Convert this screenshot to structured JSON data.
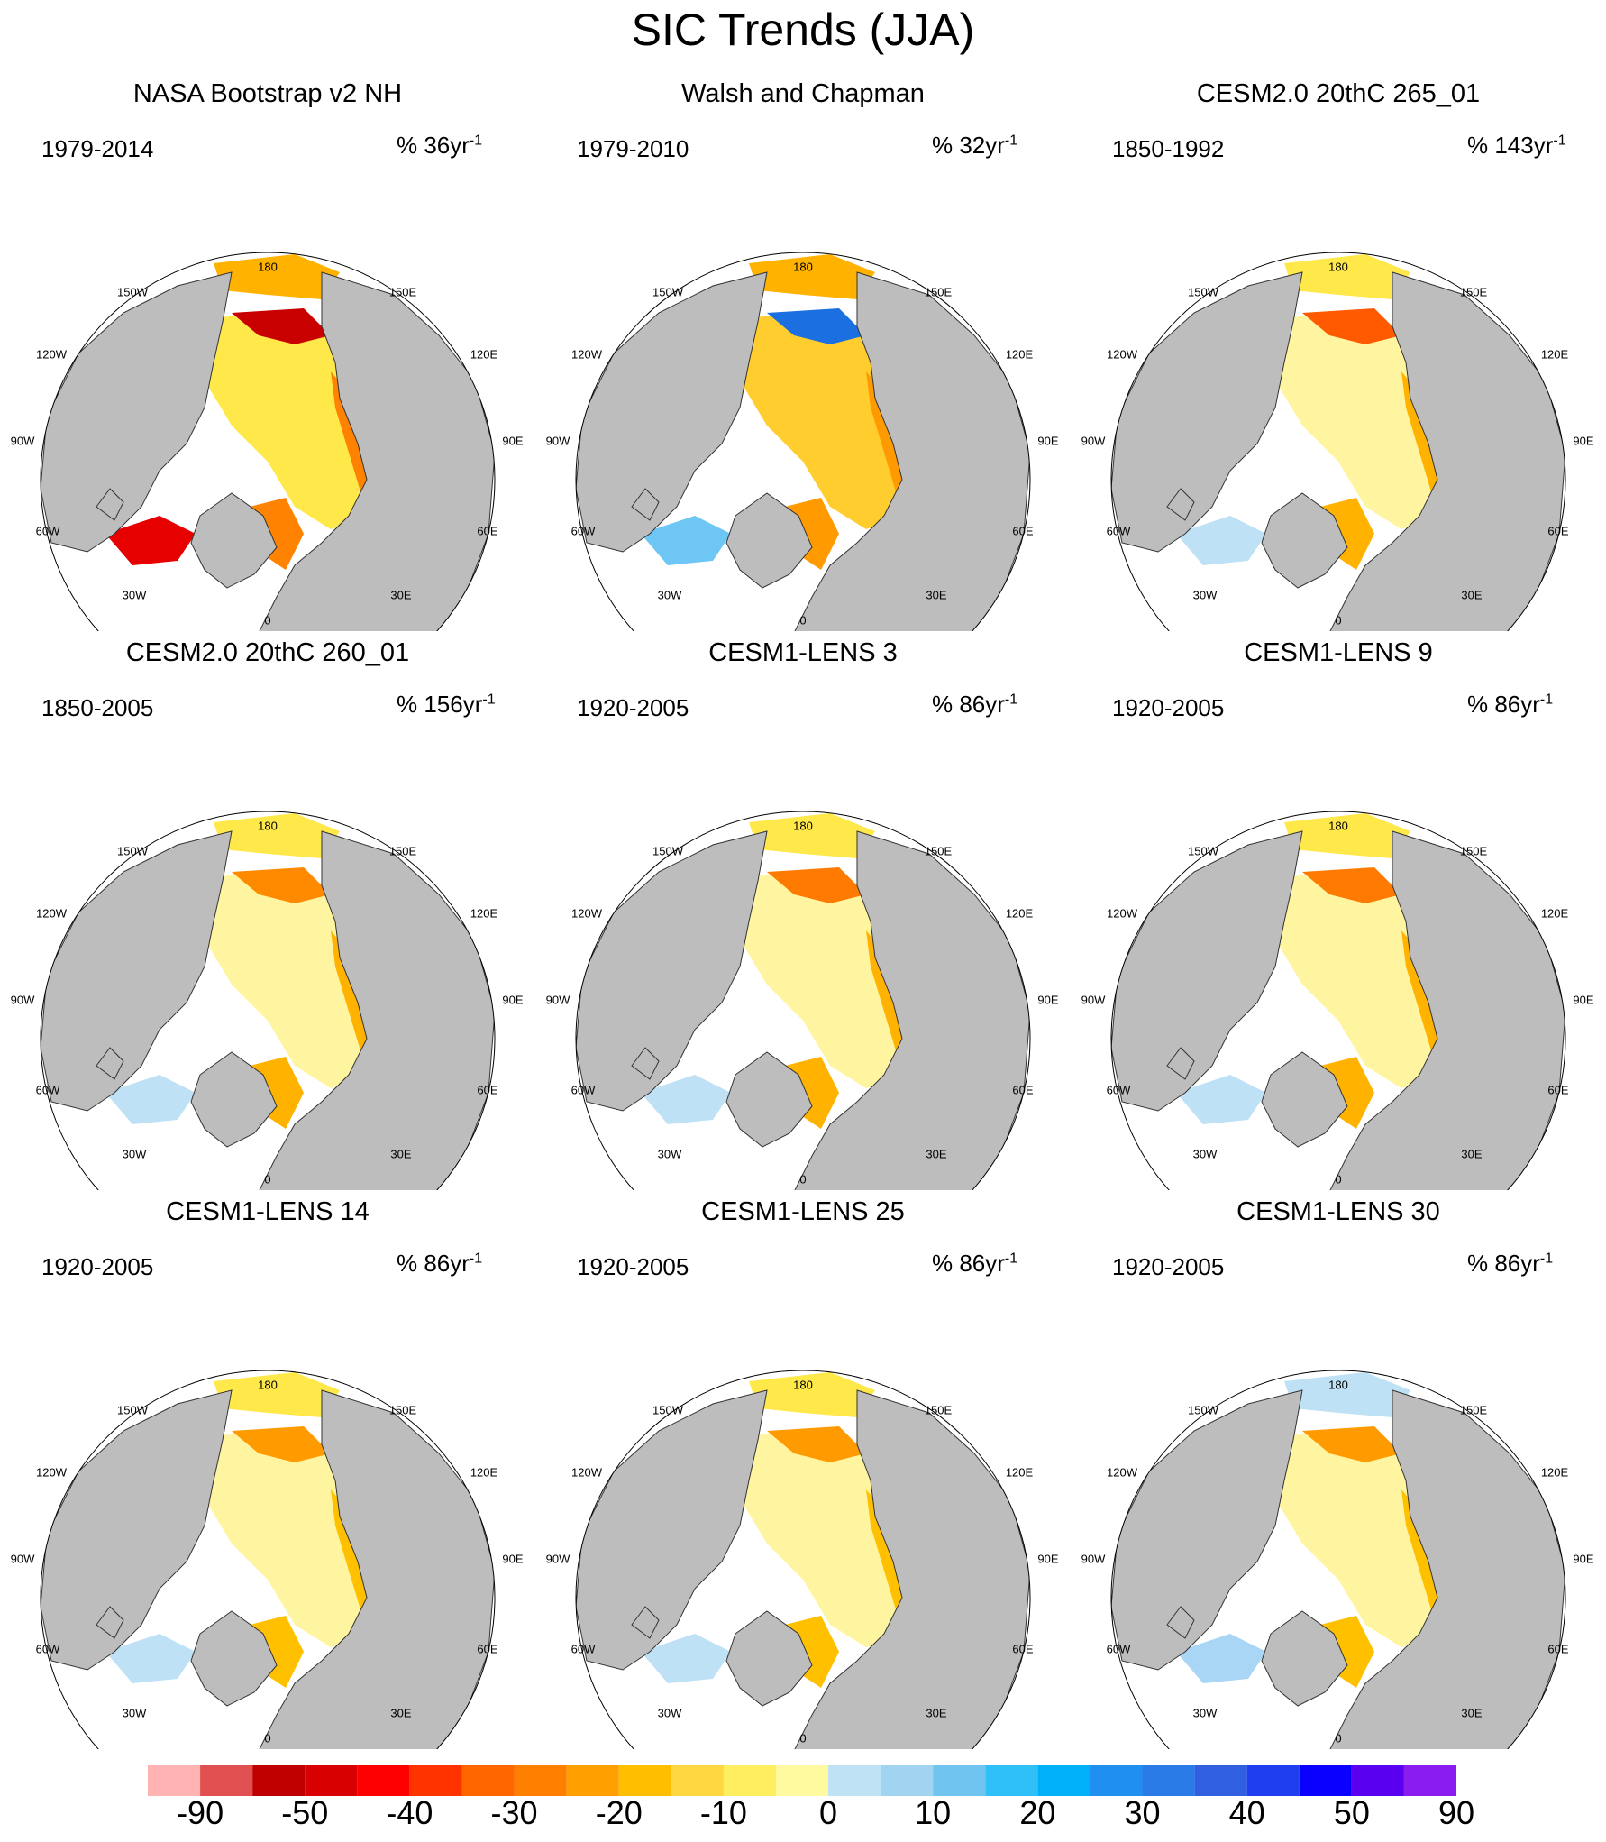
{
  "title": "SIC Trends (JJA)",
  "lon_labels": [
    "180",
    "150E",
    "120E",
    "90E",
    "60E",
    "30E",
    "0",
    "30W",
    "60W",
    "90W",
    "120W",
    "150W"
  ],
  "panels": [
    {
      "title": "NASA Bootstrap v2 NH",
      "period": "1979-2014",
      "units_prefix": "% 36yr",
      "units_exp": "-1",
      "pattern": "obs-strong",
      "colors": [
        "#ffe84a",
        "#ffb300",
        "#ff8200",
        "#e60000",
        "#c90000"
      ]
    },
    {
      "title": "Walsh and Chapman",
      "period": "1979-2010",
      "units_prefix": "% 32yr",
      "units_exp": "-1",
      "pattern": "obs-mixed",
      "colors": [
        "#ffce2e",
        "#ffb300",
        "#ff9a00",
        "#6ec6f5",
        "#1b6fe0"
      ]
    },
    {
      "title": "CESM2.0 20thC 265_01",
      "period": "1850-1992",
      "units_prefix": "% 143yr",
      "units_exp": "-1",
      "pattern": "model",
      "colors": [
        "#fff5a0",
        "#ffe84a",
        "#ffb300",
        "#bfe1f6",
        "#ff5a00"
      ]
    },
    {
      "title": "CESM2.0 20thC 260_01",
      "period": "1850-2005",
      "units_prefix": "% 156yr",
      "units_exp": "-1",
      "pattern": "model",
      "colors": [
        "#fff5a0",
        "#ffe84a",
        "#ffb300",
        "#bfe1f6",
        "#ff8a00"
      ]
    },
    {
      "title": "CESM1-LENS 3",
      "period": "1920-2005",
      "units_prefix": "% 86yr",
      "units_exp": "-1",
      "pattern": "model",
      "colors": [
        "#fff5a0",
        "#ffe84a",
        "#ffb300",
        "#bfe1f6",
        "#ff7a00"
      ]
    },
    {
      "title": "CESM1-LENS 9",
      "period": "1920-2005",
      "units_prefix": "% 86yr",
      "units_exp": "-1",
      "pattern": "model",
      "colors": [
        "#fff5a0",
        "#ffe84a",
        "#ffb300",
        "#bfe1f6",
        "#ff7a00"
      ]
    },
    {
      "title": "CESM1-LENS 14",
      "period": "1920-2005",
      "units_prefix": "% 86yr",
      "units_exp": "-1",
      "pattern": "model",
      "colors": [
        "#fff5a0",
        "#ffe84a",
        "#ffc000",
        "#bfe1f6",
        "#ff9a00"
      ]
    },
    {
      "title": "CESM1-LENS 25",
      "period": "1920-2005",
      "units_prefix": "% 86yr",
      "units_exp": "-1",
      "pattern": "model",
      "colors": [
        "#fff5a0",
        "#ffe84a",
        "#ffc000",
        "#bfe1f6",
        "#ff9a00"
      ]
    },
    {
      "title": "CESM1-LENS 30",
      "period": "1920-2005",
      "units_prefix": "% 86yr",
      "units_exp": "-1",
      "pattern": "model-blue",
      "colors": [
        "#fff5a0",
        "#bfe1f6",
        "#ffc000",
        "#a9d6f5",
        "#ff9a00"
      ]
    }
  ],
  "colorbar": {
    "colors": [
      "#ffb3b3",
      "#e05050",
      "#c00000",
      "#d80000",
      "#ff0000",
      "#ff3300",
      "#ff6600",
      "#ff8000",
      "#ffa000",
      "#ffbf00",
      "#ffd740",
      "#ffee60",
      "#fffaa0",
      "#c0e2f5",
      "#a0d4f0",
      "#70c4f0",
      "#30c0f8",
      "#00b0f8",
      "#2090f0",
      "#2a7ae8",
      "#3060e0",
      "#1f3ef0",
      "#0a00ff",
      "#5a00f0",
      "#8a1cf0"
    ],
    "labels": [
      "-90",
      "-50",
      "-40",
      "-30",
      "-20",
      "-10",
      "0",
      "10",
      "20",
      "30",
      "40",
      "50",
      "90"
    ]
  }
}
